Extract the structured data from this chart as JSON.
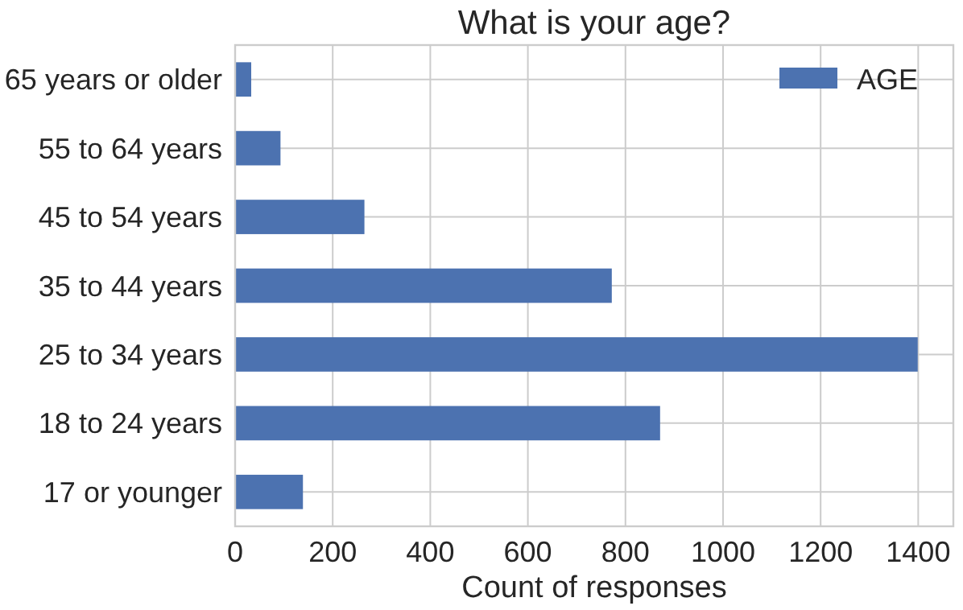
{
  "chart_data": {
    "type": "bar",
    "orientation": "horizontal",
    "title": "What is your age?",
    "xlabel": "Count of responses",
    "categories": [
      "65 years or older",
      "55 to 64 years",
      "45 to 54 years",
      "35 to 44 years",
      "25 to 34 years",
      "18 to 24 years",
      "17 or younger"
    ],
    "series": [
      {
        "name": "AGE",
        "color": "#4c72b0",
        "values": [
          33,
          93,
          265,
          772,
          1399,
          871,
          139
        ]
      }
    ],
    "xlim": [
      0,
      1472
    ],
    "xticks": [
      0,
      200,
      400,
      600,
      800,
      1000,
      1200,
      1400
    ],
    "grid": true,
    "legend": "top right"
  }
}
